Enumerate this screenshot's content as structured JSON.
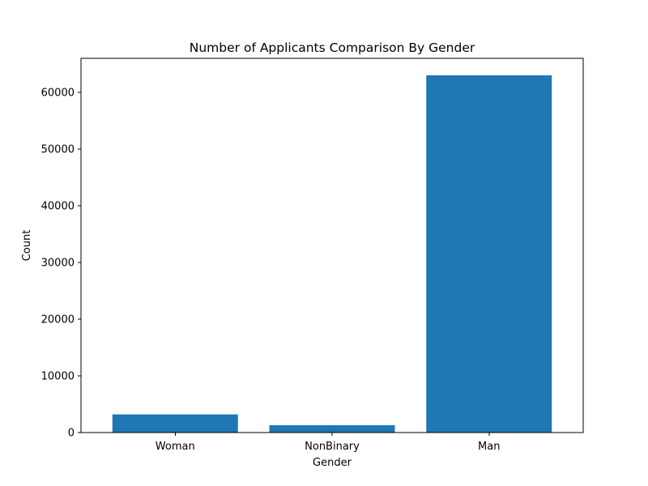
{
  "chart_data": {
    "type": "bar",
    "title": "Number of Applicants Comparison By Gender",
    "xlabel": "Gender",
    "ylabel": "Count",
    "categories": [
      "Woman",
      "NonBinary",
      "Man"
    ],
    "values": [
      3200,
      1300,
      63000
    ],
    "ylim": [
      0,
      66000
    ],
    "yticks": [
      0,
      10000,
      20000,
      30000,
      40000,
      50000,
      60000
    ],
    "bar_color": "#1f77b4",
    "grid": false,
    "legend": "none"
  }
}
